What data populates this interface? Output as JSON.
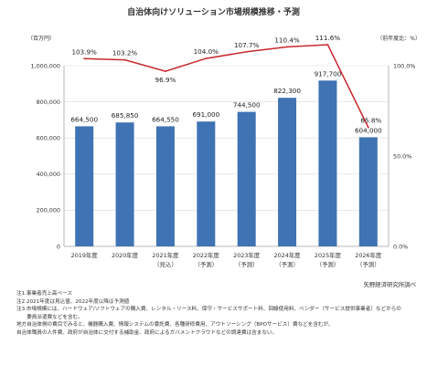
{
  "title": "自治体向けソリューション市場規模推移・予測",
  "left_unit": "（百万円）",
  "right_unit": "（前年度比：%）",
  "source": "矢野経済研究所調べ",
  "chart_data": {
    "type": "bar",
    "title": "自治体向けソリューション市場規模推移・予測",
    "categories": [
      "2019年度",
      "2020年度",
      "2021年度",
      "2022年度",
      "2023年度",
      "2024年度",
      "2025年度",
      "2026年度"
    ],
    "category_sublabels": [
      "",
      "",
      "（見込）",
      "（予測）",
      "（予測）",
      "（予測）",
      "（予測）",
      "（予測）"
    ],
    "series": [
      {
        "values": [
          664500,
          685850,
          664550,
          691000,
          744500,
          822300,
          917700,
          604000
        ],
        "value_labels": [
          "664,500",
          "685,850",
          "664,550",
          "691,000",
          "744,500",
          "822,300",
          "917,700",
          "604,000"
        ],
        "color": "#3f73b3",
        "axis": "left"
      },
      {
        "values": [
          103.9,
          103.2,
          96.9,
          104.0,
          107.7,
          110.4,
          111.6,
          65.8
        ],
        "value_labels": [
          "103.9%",
          "103.2%",
          "96.9%",
          "104.0%",
          "107.7%",
          "110.4%",
          "111.6%",
          "65.8%"
        ],
        "color": "#c8282d",
        "type": "line",
        "axis": "right"
      }
    ],
    "ylim": [
      0,
      1000000
    ],
    "yticks": [
      "0",
      "200,000",
      "400,000",
      "600,000",
      "800,000",
      "1,000,000"
    ],
    "y2lim": [
      0,
      100
    ],
    "y2ticks": [
      "0.0%",
      "50.0%",
      "100.0%"
    ]
  },
  "notes": [
    "注1.事業者売上高ベース",
    "注2.2021年度は見込値、2022年度以降は予測値",
    "注3.市場規模には、ハードウェア/ソフトウェアの購入費、レンタル・リース料、保守・サービスサポート料、回線使用料、ベンダー（サービス提供事業者）などからの",
    "　　要員派遣費などを含む。",
    "地方自治体側の費目でみると、機器購入費、情報システムの委託費、各種研修費用、アウトソーシング（BPOサービス）費などを含むが、",
    "自治体職員の人件費、政府が自治体に交付する補助金、政府によるガバメントクラウドなどの調達費は含まない。"
  ]
}
